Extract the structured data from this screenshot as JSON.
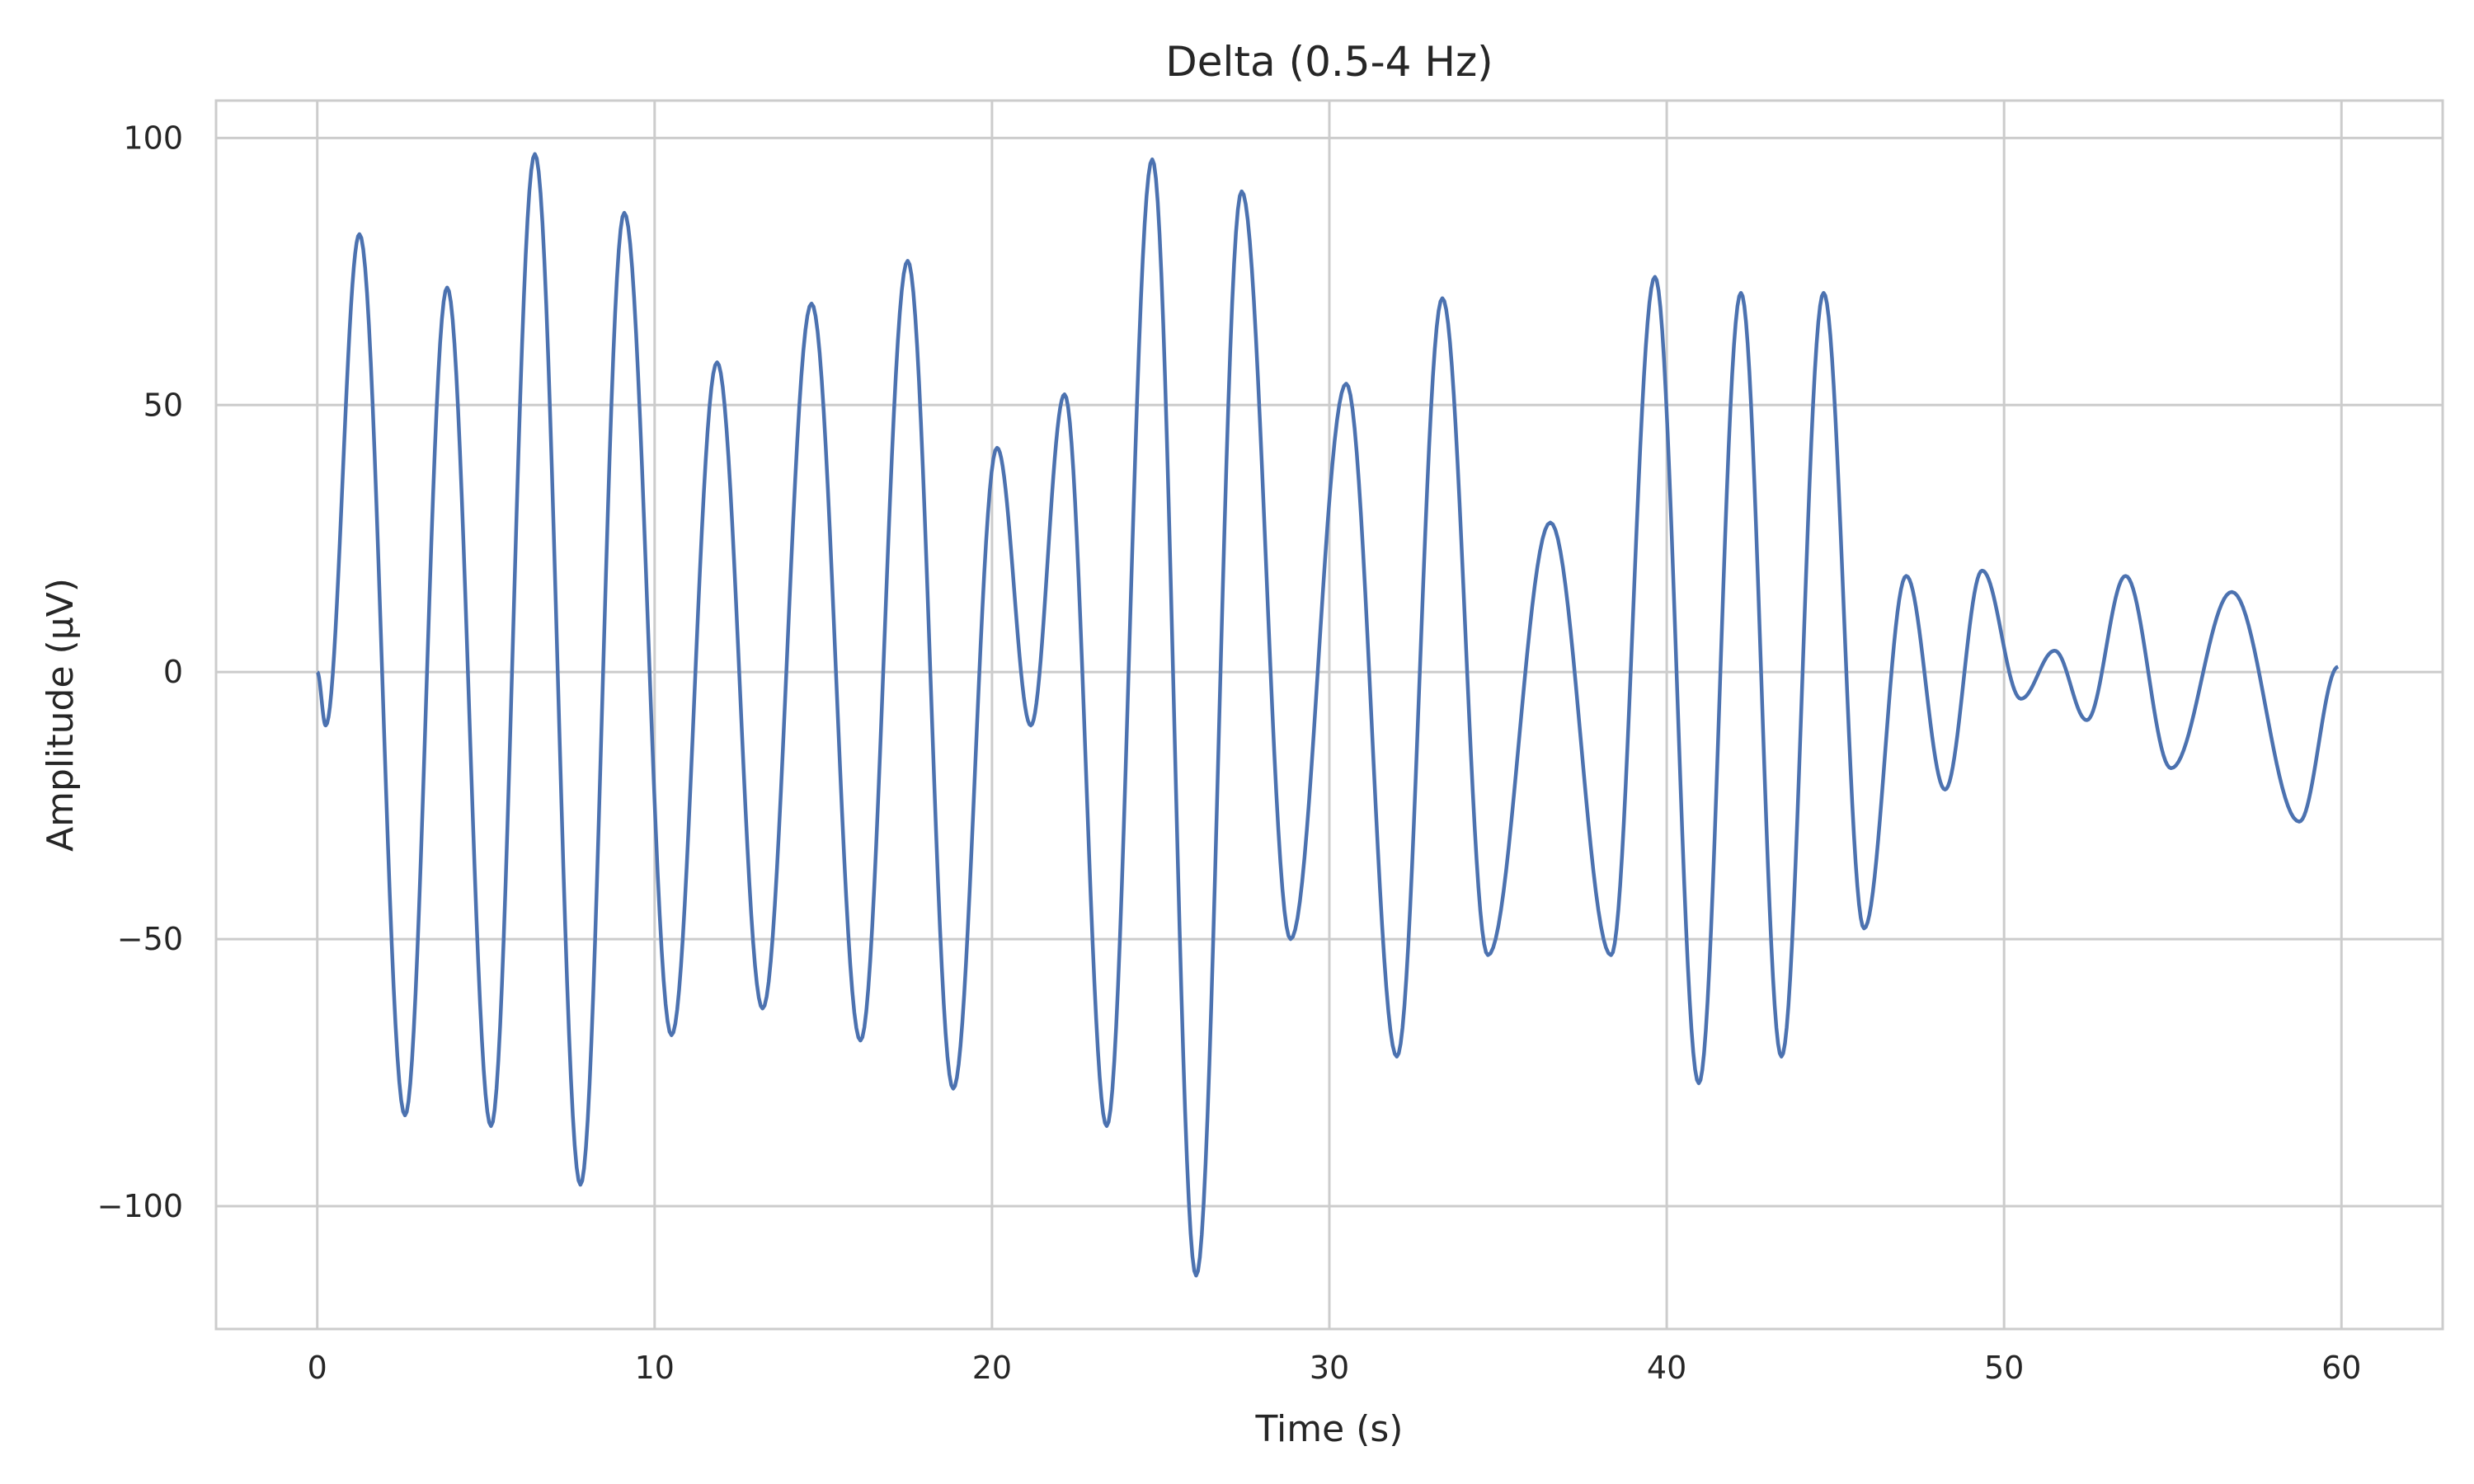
{
  "chart_data": {
    "type": "line",
    "title": "Delta (0.5-4 Hz)",
    "xlabel": "Time (s)",
    "ylabel": "Amplitude (μV)",
    "xlim": [
      -3,
      63
    ],
    "ylim": [
      -123,
      107
    ],
    "xticks": [
      0,
      10,
      20,
      30,
      40,
      50,
      60
    ],
    "xtick_labels": [
      "0",
      "10",
      "20",
      "30",
      "40",
      "50",
      "60"
    ],
    "yticks": [
      -100,
      -50,
      0,
      50,
      100
    ],
    "ytick_labels": [
      "−100",
      "−50",
      "0",
      "50",
      "100"
    ],
    "grid": true,
    "line_color": "#4c72b0",
    "series": [
      {
        "x": [
          0,
          0.25,
          1.25,
          2.6,
          3.85,
          5.15,
          6.45,
          7.8,
          9.1,
          10.5,
          11.85,
          13.2,
          14.65,
          16.1,
          17.5,
          18.85,
          20.15,
          21.15,
          22.15,
          23.4,
          24.75,
          26.05,
          27.4,
          28.85,
          30.5,
          32.0,
          33.35,
          34.7,
          36.55,
          38.35,
          39.65,
          40.95,
          42.2,
          43.4,
          44.65,
          45.85,
          47.1,
          48.25,
          49.35,
          50.5,
          51.5,
          52.45,
          53.6,
          54.95,
          56.75,
          58.75,
          59.9
        ],
        "y": [
          0,
          -10,
          82,
          -83,
          72,
          -85,
          97,
          -96,
          86,
          -68,
          58,
          -63,
          69,
          -69,
          77,
          -78,
          42,
          -10,
          52,
          -85,
          96,
          -113,
          90,
          -50,
          54,
          -72,
          70,
          -53,
          28,
          -53,
          74,
          -77,
          71,
          -72,
          71,
          -48,
          18,
          -22,
          19,
          -5,
          4,
          -9,
          18,
          -18,
          15,
          -28,
          1
        ]
      }
    ]
  }
}
